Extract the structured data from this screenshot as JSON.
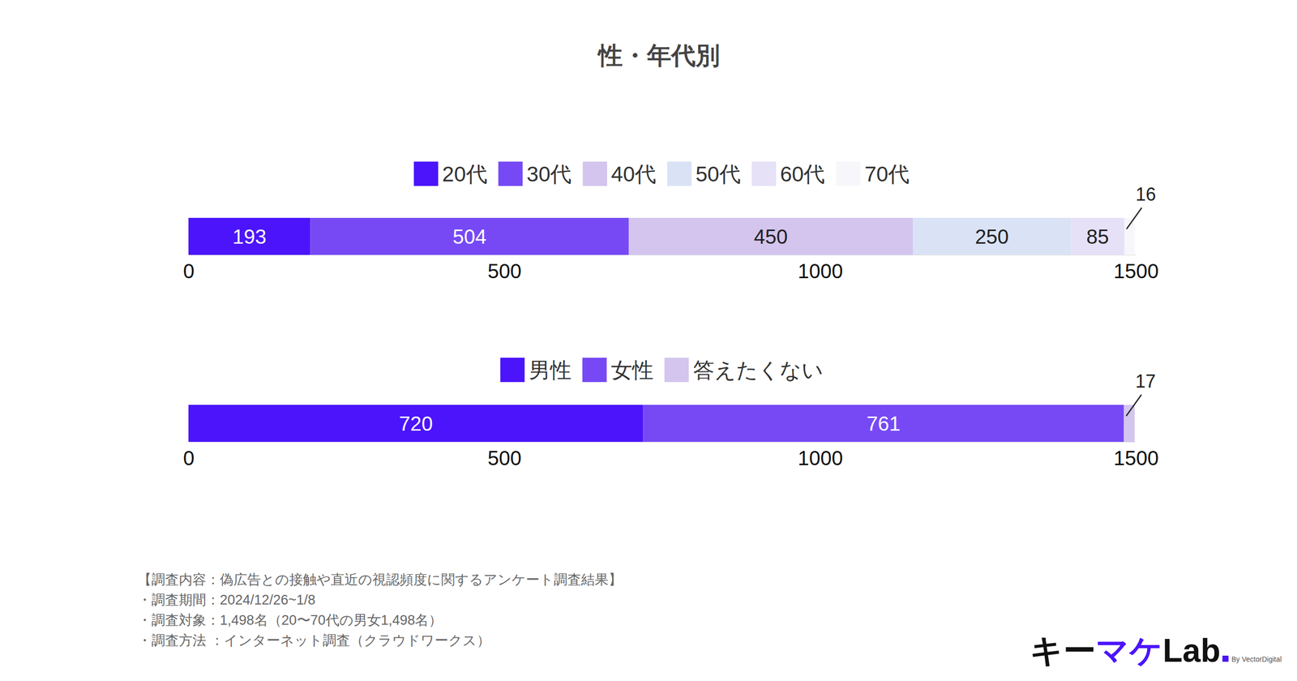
{
  "title": "性・年代別",
  "chart_data": [
    {
      "type": "bar",
      "orientation": "horizontal",
      "stacked": true,
      "data_labels": true,
      "categories": [
        null
      ],
      "series": [
        {
          "name": "20代",
          "color": "#4b14fa",
          "values": [
            193
          ]
        },
        {
          "name": "30代",
          "color": "#7649f5",
          "values": [
            504
          ]
        },
        {
          "name": "40代",
          "color": "#d3c5ee",
          "values": [
            450
          ]
        },
        {
          "name": "50代",
          "color": "#dae3f5",
          "values": [
            250
          ]
        },
        {
          "name": "60代",
          "color": "#e6e1f7",
          "values": [
            85
          ]
        },
        {
          "name": "70代",
          "color": "#f7f6fb",
          "values": [
            16
          ]
        }
      ],
      "xlim": [
        0,
        1500
      ],
      "xticks": [
        0,
        500,
        1000,
        1500
      ]
    },
    {
      "type": "bar",
      "orientation": "horizontal",
      "stacked": true,
      "data_labels": true,
      "categories": [
        null
      ],
      "series": [
        {
          "name": "男性",
          "color": "#4b14fa",
          "values": [
            720
          ]
        },
        {
          "name": "女性",
          "color": "#7649f5",
          "values": [
            761
          ]
        },
        {
          "name": "答えたくない",
          "color": "#d3c5ee",
          "values": [
            17
          ]
        }
      ],
      "xlim": [
        0,
        1500
      ],
      "xticks": [
        0,
        500,
        1000,
        1500
      ]
    }
  ],
  "footnotes": [
    "【調査内容：偽広告との接触や直近の視認頻度に関するアンケート調査結果】",
    "・調査期間：2024/12/26~1/8",
    "・調査対象：1,498名（20〜70代の男女1,498名）",
    "・調査方法 ：インターネット調査（クラウドワークス）"
  ],
  "logo": [
    "キー",
    "マケ",
    "Lab"
  ],
  "logo_sub": "By VectorDigital"
}
